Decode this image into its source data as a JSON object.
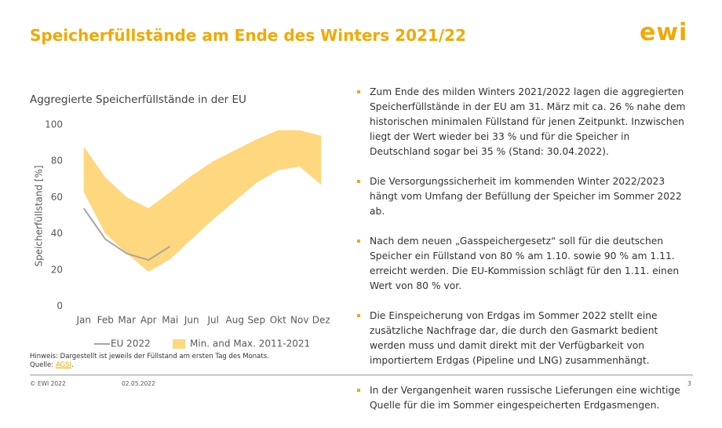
{
  "title": "Speicherfüllstände am Ende des Winters 2021/22",
  "logo": "ewi",
  "chart_data": {
    "type": "line",
    "title": "Aggregierte Speicherfüllstände in der EU",
    "ylabel": "Speicherfüllstand [%]",
    "categories": [
      "Jan",
      "Feb",
      "Mar",
      "Apr",
      "Mai",
      "Jun",
      "Jul",
      "Aug",
      "Sep",
      "Okt",
      "Nov",
      "Dez"
    ],
    "series": [
      {
        "name": "EU 2022",
        "color": "#a6a6a6",
        "values": [
          54,
          37,
          29,
          25.5,
          33,
          null,
          null,
          null,
          null,
          null,
          null,
          null
        ]
      }
    ],
    "band": {
      "name": "Min. and Max. 2011-2021",
      "color": "#ffd77f",
      "high": [
        88,
        71,
        60,
        54,
        63,
        72,
        80,
        86,
        92,
        97,
        97,
        94
      ],
      "low": [
        63,
        40,
        29,
        19,
        26,
        37,
        48,
        58,
        68,
        75,
        77,
        67
      ]
    },
    "ylim": [
      0,
      100
    ],
    "yticks": [
      0,
      20,
      40,
      60,
      80,
      100
    ],
    "grid": false,
    "legend": "bottom"
  },
  "note": "Hinweis: Dargestellt ist jeweils der Füllstand am ersten Tag des Monats.",
  "source": {
    "label": "Quelle:",
    "link": "AGSI",
    "end": "."
  },
  "bullets": [
    "Zum Ende des milden Winters 2021/2022 lagen die aggregierten Speicherfüllstände in der EU am 31. März mit ca. 26 % nahe dem historischen minimalen Füllstand für jenen Zeitpunkt. Inzwischen liegt der Wert wieder bei 33 % und für die Speicher in Deutschland sogar bei 35 % (Stand: 30.04.2022).",
    "Die Versorgungssicherheit im kommenden Winter 2022/2023 hängt vom Umfang der Befüllung der Speicher im Sommer 2022 ab.",
    "Nach dem neuen „Gasspeichergesetz“ soll für die deutschen Speicher ein Füllstand von 80 % am 1.10. sowie 90 % am 1.11. erreicht werden. Die EU-Kommission schlägt für den 1.11. einen Wert von 80 % vor.",
    "Die Einspeicherung von Erdgas im Sommer 2022 stellt eine zusätzliche Nachfrage dar, die durch den Gasmarkt bedient werden muss und damit direkt mit der Verfügbarkeit von importiertem Erdgas (Pipeline und LNG) zusammenhängt.",
    "In der Vergangenheit waren russische Lieferungen eine wichtige Quelle für die im Sommer eingespeicherten Erdgasmengen."
  ],
  "footer": {
    "copyright": "© EWI 2022",
    "date": "02.05.2022",
    "page": "3"
  }
}
